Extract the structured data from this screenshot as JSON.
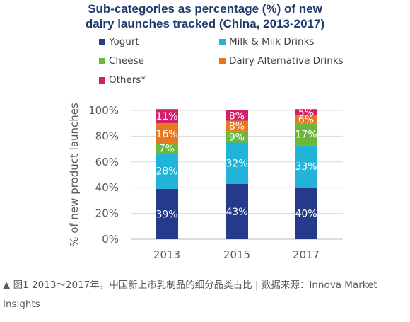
{
  "chart_data": {
    "type": "bar",
    "stacked": true,
    "title": [
      "Sub-categories as percentage (%) of new",
      "dairy launches tracked (China, 2013-2017)"
    ],
    "ylabel": "% of new product launches",
    "xlabel": "",
    "categories": [
      "2013",
      "2015",
      "2017"
    ],
    "ylim": [
      0,
      100
    ],
    "yticks": [
      0,
      20,
      40,
      60,
      80,
      100
    ],
    "ytick_labels": [
      "0%",
      "20%",
      "40%",
      "60%",
      "80%",
      "100%"
    ],
    "grid": true,
    "series": [
      {
        "name": "Yogurt",
        "color": "#263a8c",
        "values": [
          39,
          43,
          40
        ],
        "labels": [
          "39%",
          "43%",
          "40%"
        ]
      },
      {
        "name": "Milk & Milk Drinks",
        "color": "#22b3d9",
        "values": [
          28,
          32,
          33
        ],
        "labels": [
          "28%",
          "32%",
          "33%"
        ]
      },
      {
        "name": "Cheese",
        "color": "#6ab73a",
        "values": [
          7,
          9,
          17
        ],
        "labels": [
          "7%",
          "9%",
          "17%"
        ]
      },
      {
        "name": "Dairy Alternative Drinks",
        "color": "#e8771e",
        "values": [
          16,
          8,
          6
        ],
        "labels": [
          "16%",
          "8%",
          "6%"
        ]
      },
      {
        "name": "Others*",
        "color": "#d21f6a",
        "values": [
          11,
          8,
          5
        ],
        "labels": [
          "11%",
          "8%",
          "5%"
        ]
      }
    ]
  },
  "caption": "▲ 图1  2013～2017年，中国新上市乳制品的细分品类占比 | 数据来源：Innova Market Insights"
}
